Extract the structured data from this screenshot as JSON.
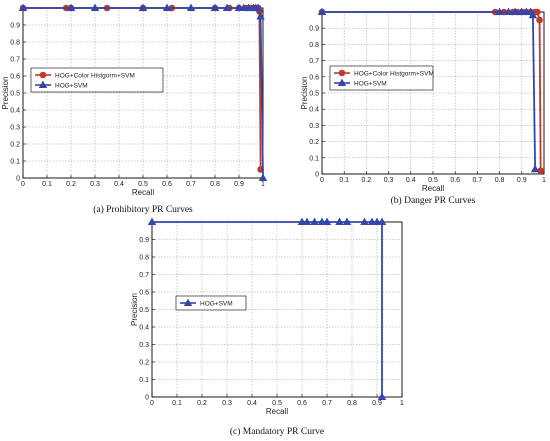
{
  "chart_data": [
    {
      "type": "line",
      "caption": "(a) Prohibitory PR Curves",
      "xlabel": "Recall",
      "ylabel": "Precision",
      "xlim": [
        0,
        1
      ],
      "ylim": [
        0,
        1
      ],
      "xticks": [
        "0",
        "0.1",
        "0.2",
        "0.3",
        "0.4",
        "0.5",
        "0.6",
        "0.7",
        "0.8",
        "0.9",
        "1"
      ],
      "yticks": [
        "0",
        "0.1",
        "0.2",
        "0.3",
        "0.4",
        "0.5",
        "0.6",
        "0.7",
        "0.8",
        "0.9"
      ],
      "grid": true,
      "legend_position": "center-left",
      "series": [
        {
          "name": "HOG+Color Histgorm+SVM",
          "color": "#c0392b",
          "marker": "circle",
          "x": [
            0,
            0.18,
            0.2,
            0.35,
            0.5,
            0.62,
            0.8,
            0.86,
            0.9,
            0.93,
            0.95,
            0.96,
            0.97,
            0.98,
            0.985,
            0.99
          ],
          "y": [
            1,
            1,
            1,
            1,
            1,
            1,
            1,
            1,
            1,
            1,
            1,
            1,
            1,
            1,
            0.98,
            0.05
          ]
        },
        {
          "name": "HOG+SVM",
          "color": "#3546a8",
          "marker": "triangle",
          "x": [
            0,
            0.2,
            0.3,
            0.5,
            0.6,
            0.7,
            0.8,
            0.85,
            0.9,
            0.92,
            0.94,
            0.96,
            0.97,
            0.98,
            0.99,
            1.0
          ],
          "y": [
            1,
            1,
            1,
            1,
            1,
            1,
            1,
            1,
            1,
            1,
            1,
            1,
            1,
            1,
            0.95,
            0
          ]
        }
      ]
    },
    {
      "type": "line",
      "caption": "(b) Danger PR Curves",
      "xlabel": "Recall",
      "ylabel": "Precision",
      "xlim": [
        0,
        1
      ],
      "ylim": [
        0,
        1
      ],
      "xticks": [
        "0",
        "0.1",
        "0.2",
        "0.3",
        "0.4",
        "0.5",
        "0.6",
        "0.7",
        "0.8",
        "0.9",
        "1"
      ],
      "yticks": [
        "0",
        "0.1",
        "0.2",
        "0.3",
        "0.4",
        "0.5",
        "0.6",
        "0.7",
        "0.8",
        "0.9"
      ],
      "grid": true,
      "legend_position": "center-left",
      "series": [
        {
          "name": "HOG+Color Histgorm+SVM",
          "color": "#c0392b",
          "marker": "circle",
          "x": [
            0,
            0.78,
            0.82,
            0.86,
            0.88,
            0.9,
            0.92,
            0.94,
            0.96,
            0.97,
            0.98,
            0.985
          ],
          "y": [
            1,
            1,
            1,
            1,
            1,
            1,
            1,
            1,
            1,
            1,
            0.95,
            0.02
          ]
        },
        {
          "name": "HOG+SVM",
          "color": "#3546a8",
          "marker": "triangle",
          "x": [
            0,
            0.8,
            0.84,
            0.87,
            0.9,
            0.92,
            0.94,
            0.95,
            0.96
          ],
          "y": [
            1,
            1,
            1,
            1,
            1,
            1,
            1,
            0.98,
            0.03
          ]
        }
      ]
    },
    {
      "type": "line",
      "caption": "(c) Mandatory PR Curve",
      "xlabel": "Recall",
      "ylabel": "Precision",
      "xlim": [
        0,
        1
      ],
      "ylim": [
        0,
        1
      ],
      "xticks": [
        "0",
        "0.1",
        "0.2",
        "0.3",
        "0.4",
        "0.5",
        "0.6",
        "0.7",
        "0.8",
        "0.9",
        "1"
      ],
      "yticks": [
        "0",
        "0.1",
        "0.2",
        "0.3",
        "0.4",
        "0.5",
        "0.6",
        "0.7",
        "0.8",
        "0.9"
      ],
      "grid": true,
      "legend_position": "center-left",
      "series": [
        {
          "name": "HOG+SVM",
          "color": "#3546a8",
          "marker": "triangle",
          "x": [
            0,
            0.6,
            0.62,
            0.65,
            0.68,
            0.7,
            0.75,
            0.78,
            0.85,
            0.88,
            0.9,
            0.92,
            0.92
          ],
          "y": [
            1,
            1,
            1,
            1,
            1,
            1,
            1,
            1,
            1,
            1,
            1,
            1,
            0
          ]
        }
      ]
    }
  ]
}
